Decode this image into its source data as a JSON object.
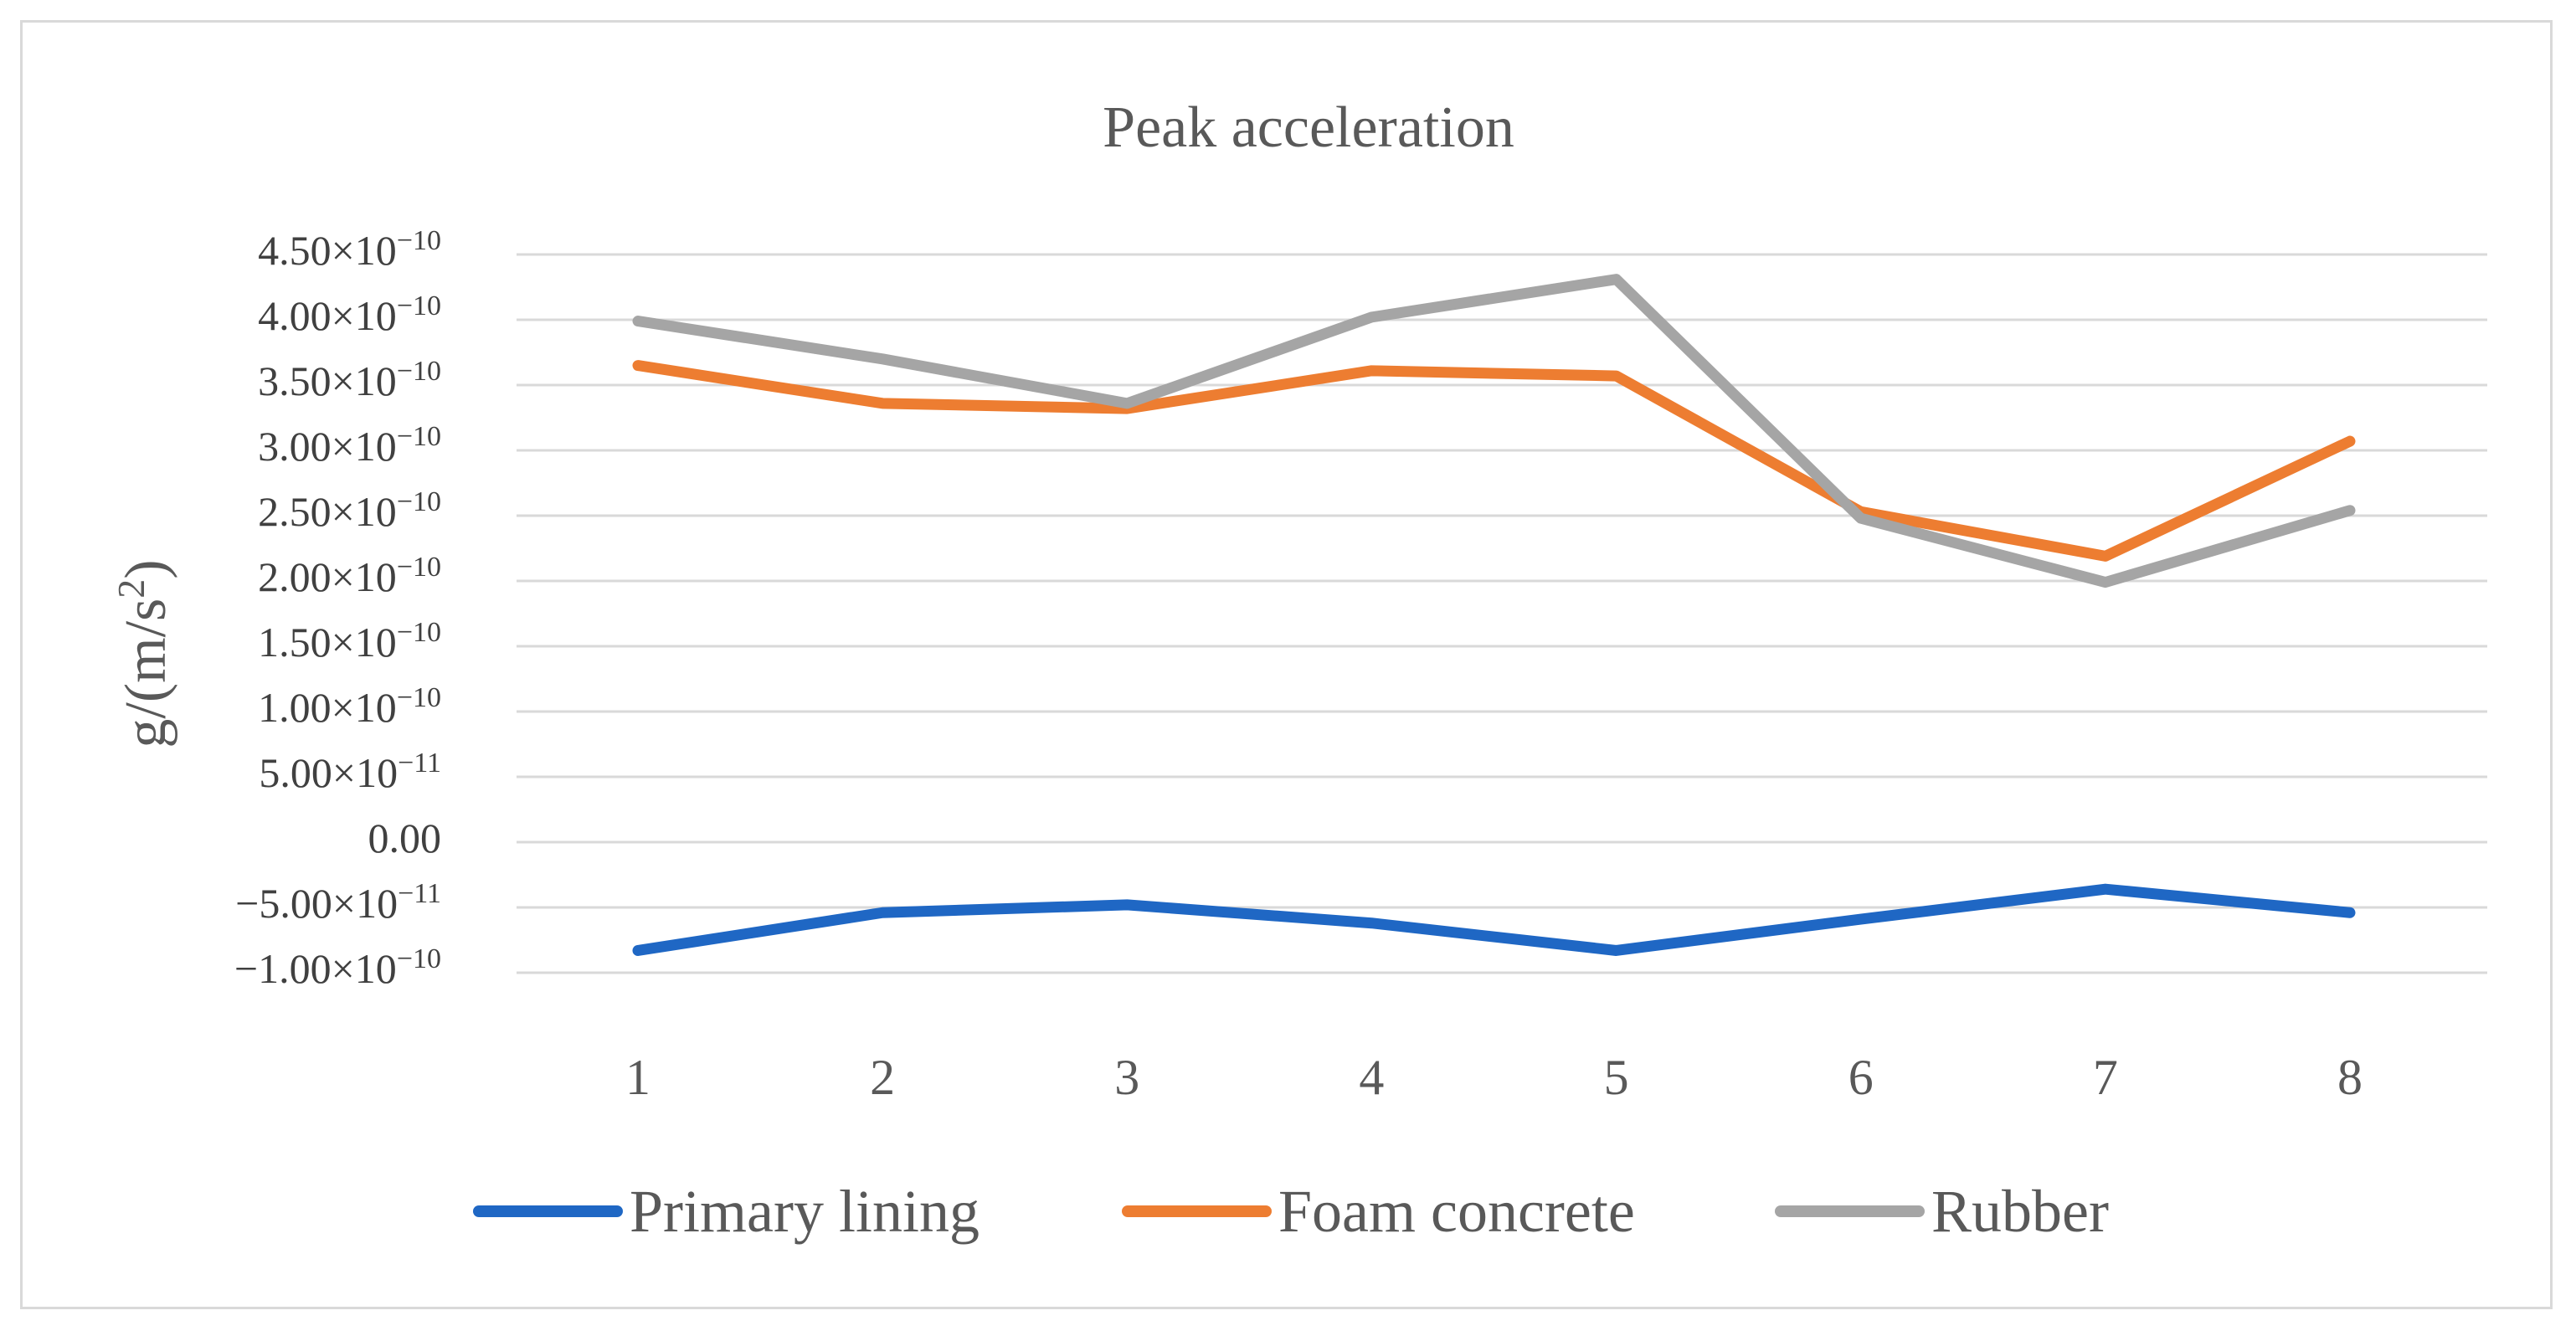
{
  "chart_data": {
    "type": "line",
    "title": "Peak acceleration",
    "xlabel": "",
    "ylabel": "g/(m/s2)",
    "ylabel_parts": {
      "base": "g/(m/s",
      "sup": "2",
      "tail": ")"
    },
    "categories": [
      "1",
      "2",
      "3",
      "4",
      "5",
      "6",
      "7",
      "8"
    ],
    "ylim": [
      -1e-10,
      4.5e-10
    ],
    "y_ticks": [
      {
        "value": 4.5e-10,
        "mantissa": "4.50×10",
        "exp": "−10"
      },
      {
        "value": 4e-10,
        "mantissa": "4.00×10",
        "exp": "−10"
      },
      {
        "value": 3.5e-10,
        "mantissa": "3.50×10",
        "exp": "−10"
      },
      {
        "value": 3e-10,
        "mantissa": "3.00×10",
        "exp": "−10"
      },
      {
        "value": 2.5e-10,
        "mantissa": "2.50×10",
        "exp": "−10"
      },
      {
        "value": 2e-10,
        "mantissa": "2.00×10",
        "exp": "−10"
      },
      {
        "value": 1.5e-10,
        "mantissa": "1.50×10",
        "exp": "−10"
      },
      {
        "value": 1e-10,
        "mantissa": "1.00×10",
        "exp": "−10"
      },
      {
        "value": 5e-11,
        "mantissa": "5.00×10",
        "exp": "−11"
      },
      {
        "value": 0,
        "mantissa": "0.00",
        "exp": ""
      },
      {
        "value": -5e-11,
        "mantissa": "−5.00×10",
        "exp": "−11"
      },
      {
        "value": -1e-10,
        "mantissa": "−1.00×10",
        "exp": "−10"
      }
    ],
    "grid": true,
    "legend_position": "bottom",
    "series": [
      {
        "name": "Primary lining",
        "color": "#1f67c4",
        "values": [
          -8.3e-11,
          -5.4e-11,
          -4.8e-11,
          -6.2e-11,
          -8.3e-11,
          -5.9e-11,
          -3.6e-11,
          -5.4e-11
        ]
      },
      {
        "name": "Foam concrete",
        "color": "#ed7d31",
        "values": [
          3.65e-10,
          3.36e-10,
          3.32e-10,
          3.61e-10,
          3.57e-10,
          2.53e-10,
          2.19e-10,
          3.07e-10
        ]
      },
      {
        "name": "Rubber",
        "color": "#a5a5a5",
        "values": [
          3.99e-10,
          3.7e-10,
          3.36e-10,
          4.02e-10,
          4.31e-10,
          2.48e-10,
          1.99e-10,
          2.54e-10
        ]
      }
    ]
  }
}
